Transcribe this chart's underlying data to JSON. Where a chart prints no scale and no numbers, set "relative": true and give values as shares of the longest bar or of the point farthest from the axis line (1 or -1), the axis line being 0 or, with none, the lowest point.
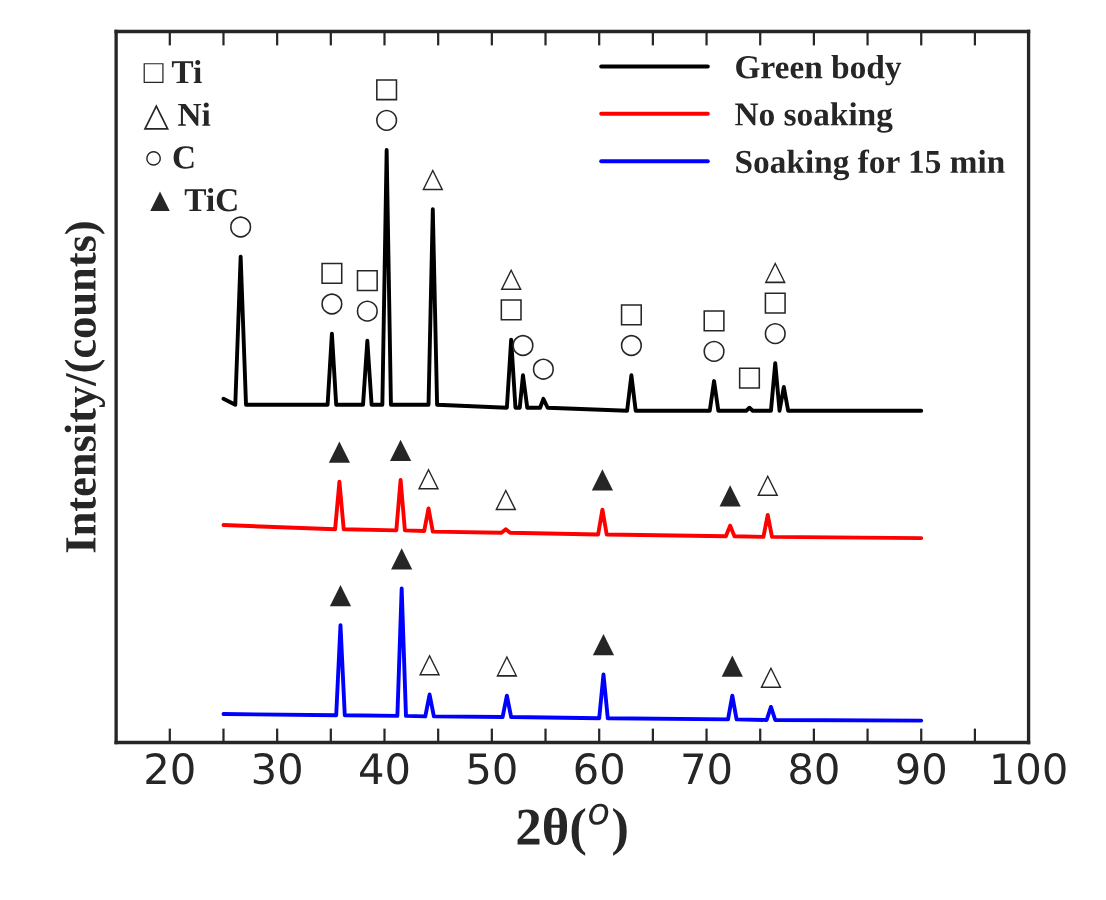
{
  "chart_data": {
    "type": "line",
    "relative": true,
    "xlabel": "2θ($^{o}$)",
    "ylabel": "Intensity/(counts)",
    "xlim": [
      15,
      100
    ],
    "xticks": [
      20,
      {
        "value": 25,
        "label": null
      },
      30,
      {
        "value": 35,
        "label": null
      },
      40,
      {
        "value": 45,
        "label": null
      },
      50,
      {
        "value": 55,
        "label": null
      },
      60,
      {
        "value": 65,
        "label": null
      },
      70,
      {
        "value": 75,
        "label": null
      },
      80,
      {
        "value": 85,
        "label": null
      },
      90,
      {
        "value": 95,
        "label": null
      },
      100
    ],
    "legend": "top right",
    "line_style": "solid",
    "marker": "none",
    "grid": false,
    "series": [
      {
        "name": "Green body",
        "color": "#000000",
        "x": [
          25,
          26.1,
          26.6,
          27.1,
          34.7,
          35.1,
          35.5,
          38.0,
          38.4,
          38.8,
          39.8,
          40.2,
          40.6,
          44.1,
          44.5,
          44.9,
          51.4,
          51.8,
          52.2,
          52.6,
          52.9,
          53.3,
          54.5,
          54.8,
          55.2,
          62.6,
          63.0,
          63.4,
          70.3,
          70.7,
          71.1,
          73.7,
          74.0,
          74.3,
          76.0,
          76.4,
          76.8,
          77.2,
          77.6,
          90
        ],
        "values": [
          0.58,
          0.57,
          0.82,
          0.57,
          0.57,
          0.69,
          0.57,
          0.57,
          0.678,
          0.57,
          0.57,
          1.0,
          0.57,
          0.57,
          0.9,
          0.57,
          0.565,
          0.68,
          0.565,
          0.565,
          0.62,
          0.565,
          0.565,
          0.58,
          0.565,
          0.56,
          0.62,
          0.56,
          0.56,
          0.61,
          0.56,
          0.56,
          0.565,
          0.56,
          0.56,
          0.64,
          0.56,
          0.6,
          0.56,
          0.56
        ]
      },
      {
        "name": "No soaking",
        "color": "#ff0000",
        "x": [
          25,
          35.4,
          35.8,
          36.2,
          41.1,
          41.5,
          41.9,
          43.7,
          44.1,
          44.5,
          50.9,
          51.3,
          51.7,
          59.9,
          60.3,
          60.7,
          71.8,
          72.2,
          72.6,
          75.3,
          75.7,
          76.1,
          90
        ],
        "values": [
          0.367,
          0.36,
          0.44,
          0.36,
          0.358,
          0.443,
          0.358,
          0.357,
          0.395,
          0.356,
          0.354,
          0.36,
          0.354,
          0.351,
          0.393,
          0.351,
          0.348,
          0.366,
          0.348,
          0.347,
          0.384,
          0.347,
          0.345
        ]
      },
      {
        "name": "Soaking for 15 min",
        "color": "#0000ff",
        "x": [
          25,
          35.5,
          35.9,
          36.3,
          41.2,
          41.6,
          42.0,
          43.8,
          44.2,
          44.6,
          51.0,
          51.4,
          51.8,
          60.0,
          60.4,
          60.8,
          72.0,
          72.4,
          72.8,
          75.6,
          76.0,
          76.4,
          90
        ],
        "values": [
          0.048,
          0.046,
          0.198,
          0.046,
          0.045,
          0.26,
          0.045,
          0.044,
          0.081,
          0.044,
          0.043,
          0.079,
          0.043,
          0.041,
          0.115,
          0.041,
          0.039,
          0.079,
          0.039,
          0.038,
          0.06,
          0.038,
          0.037
        ]
      }
    ],
    "annotations": [
      "□ Ti",
      "△ Ni",
      "○ C",
      "▲ TiC",
      {
        "text": "○",
        "x": 26.6,
        "y": 0.82
      },
      {
        "text": "○",
        "x": 35.1,
        "y": 0.69
      },
      {
        "text": "□",
        "x": 35.1,
        "y": 0.69
      },
      {
        "text": "○",
        "x": 38.4,
        "y": 0.678
      },
      {
        "text": "□",
        "x": 38.4,
        "y": 0.678
      },
      {
        "text": "○",
        "x": 40.2,
        "y": 1.0
      },
      {
        "text": "□",
        "x": 40.2,
        "y": 1.0
      },
      {
        "text": "△",
        "x": 44.5,
        "y": 0.9
      },
      {
        "text": "□",
        "x": 51.8,
        "y": 0.68
      },
      {
        "text": "△",
        "x": 51.8,
        "y": 0.68
      },
      {
        "text": "○",
        "x": 52.9,
        "y": 0.62
      },
      {
        "text": "○",
        "x": 54.8,
        "y": 0.58
      },
      {
        "text": "○",
        "x": 63.0,
        "y": 0.62
      },
      {
        "text": "□",
        "x": 63.0,
        "y": 0.62
      },
      {
        "text": "○",
        "x": 70.7,
        "y": 0.61
      },
      {
        "text": "□",
        "x": 70.7,
        "y": 0.61
      },
      {
        "text": "□",
        "x": 74.0,
        "y": 0.565
      },
      {
        "text": "○",
        "x": 76.4,
        "y": 0.64
      },
      {
        "text": "□",
        "x": 76.4,
        "y": 0.64
      },
      {
        "text": "△",
        "x": 76.4,
        "y": 0.64
      },
      {
        "text": "▲",
        "x": 35.8,
        "y": 0.44
      },
      {
        "text": "▲",
        "x": 41.5,
        "y": 0.443
      },
      {
        "text": "△",
        "x": 44.1,
        "y": 0.395
      },
      {
        "text": "△",
        "x": 51.3,
        "y": 0.36
      },
      {
        "text": "▲",
        "x": 60.3,
        "y": 0.393
      },
      {
        "text": "▲",
        "x": 72.2,
        "y": 0.366
      },
      {
        "text": "△",
        "x": 75.7,
        "y": 0.384
      },
      {
        "text": "▲",
        "x": 35.9,
        "y": 0.198
      },
      {
        "text": "▲",
        "x": 41.6,
        "y": 0.26
      },
      {
        "text": "△",
        "x": 44.2,
        "y": 0.081
      },
      {
        "text": "△",
        "x": 51.4,
        "y": 0.079
      },
      {
        "text": "▲",
        "x": 60.4,
        "y": 0.115
      },
      {
        "text": "▲",
        "x": 72.4,
        "y": 0.079
      },
      {
        "text": "△",
        "x": 76.0,
        "y": 0.06
      }
    ]
  }
}
